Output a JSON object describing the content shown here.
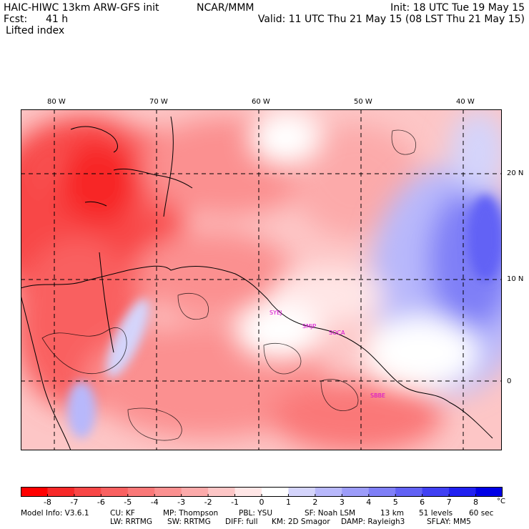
{
  "header": {
    "model": "HAIC-HIWC 13km ARW-GFS init",
    "org": "NCAR/MMM",
    "fcst_label": "Fcst:",
    "fcst_value": "41 h",
    "field": "Lifted index",
    "init": "Init: 18 UTC Tue 19 May 15",
    "valid": "Valid: 11 UTC Thu 21 May 15 (08 LST Thu 21 May 15)"
  },
  "map": {
    "lon_labels": [
      "80 W",
      "70 W",
      "60 W",
      "50 W",
      "40 W"
    ],
    "lat_labels": [
      "20 N",
      "10 N",
      "0"
    ],
    "stations": [
      "SYEJ",
      "SMJP",
      "SOCA",
      "SBBE"
    ]
  },
  "colorbar": {
    "unit": "°C",
    "ticks": [
      "-8",
      "-7",
      "-6",
      "-5",
      "-4",
      "-3",
      "-2",
      "-1",
      "0",
      "1",
      "2",
      "3",
      "4",
      "5",
      "6",
      "7",
      "8"
    ],
    "colors": [
      "#ff0000",
      "#f72828",
      "#f84646",
      "#f96060",
      "#fa7878",
      "#fb9090",
      "#fcaaaa",
      "#fdc6c6",
      "#ffe6e6",
      "#ffffff",
      "#d4d4fb",
      "#b8b8fb",
      "#9c9cf9",
      "#7f7ff7",
      "#6262f5",
      "#4040f3",
      "#2020f0",
      "#0000e6"
    ]
  },
  "footer": {
    "line1": [
      "Model Info: V3.6.1",
      "CU: KF",
      "MP: Thompson",
      "PBL: YSU",
      "SF: Noah LSM",
      "13 km",
      "51 levels",
      "60 sec"
    ],
    "line2": [
      "LW: RRTMG",
      "SW: RRTMG",
      "DIFF: full",
      "KM: 2D Smagor",
      "DAMP: Rayleigh3",
      "SFLAY: MM5"
    ]
  }
}
